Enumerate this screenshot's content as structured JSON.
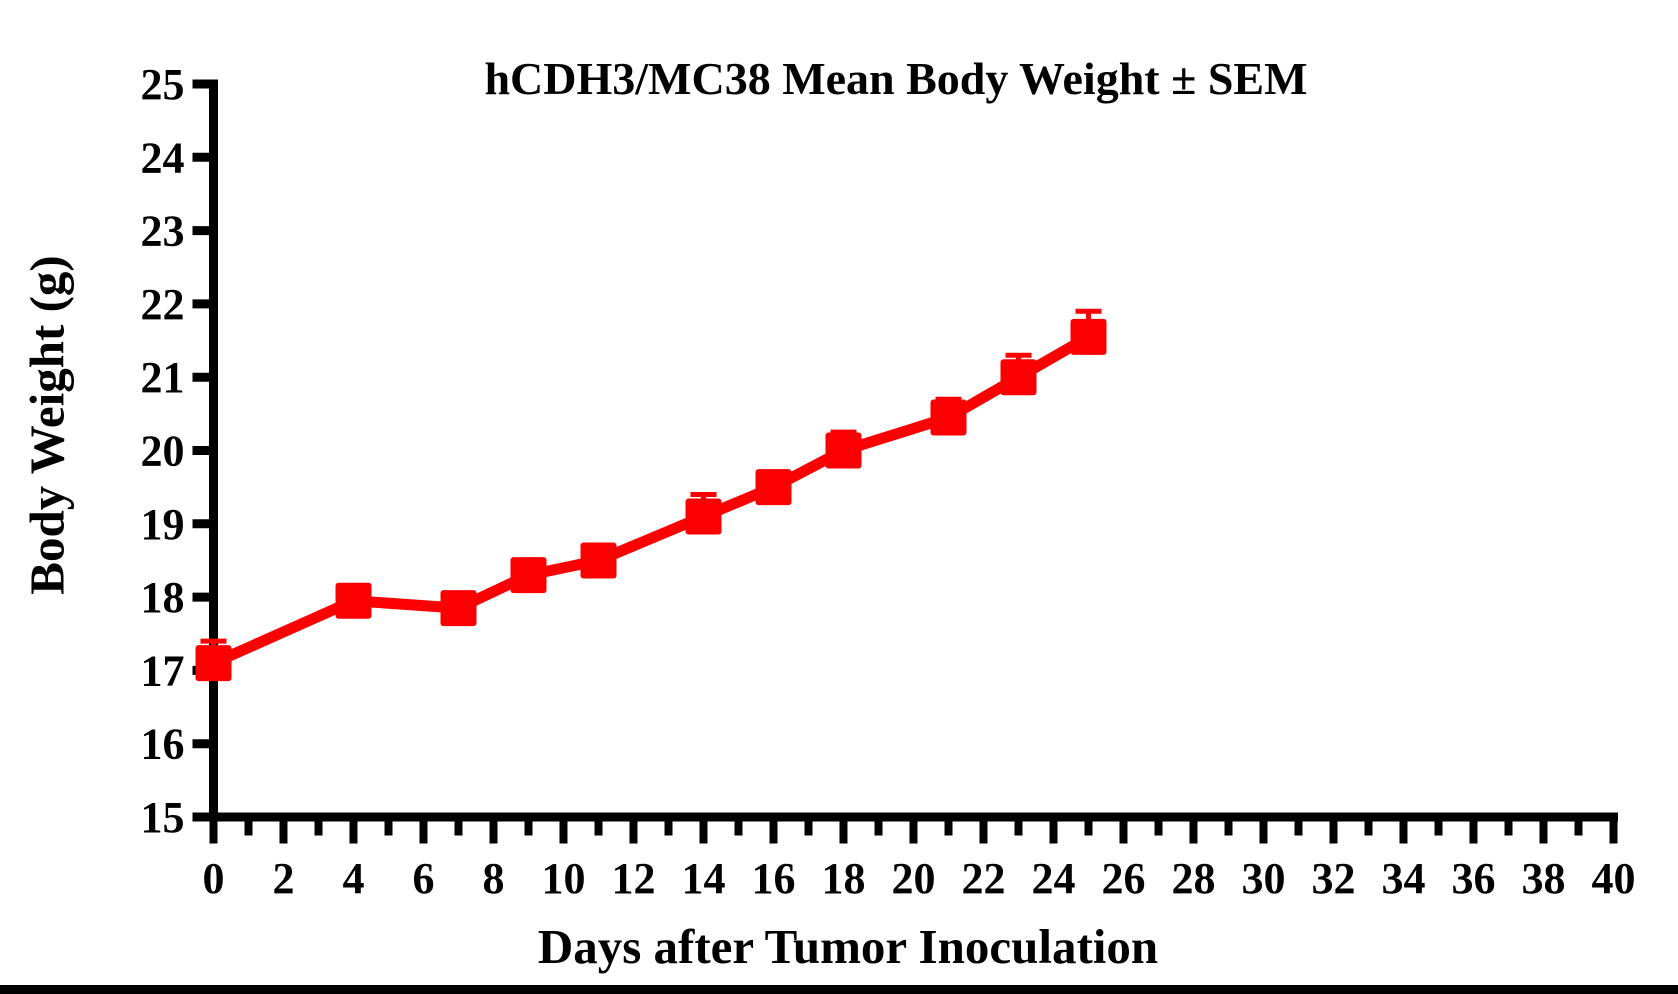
{
  "window": {
    "background": "#FFFFFF",
    "bottom_bar_color": "#000000"
  },
  "chart_data": {
    "type": "line",
    "title": "hCDH3/MC38 Mean Body Weight ± SEM",
    "xlabel": "Days after Tumor Inoculation",
    "ylabel": "Body Weight (g)",
    "x": [
      0,
      4,
      7,
      9,
      11,
      14,
      16,
      18,
      21,
      23,
      25
    ],
    "series": [
      {
        "name": "hCDH3/MC38 Mean Body Weight",
        "values": [
          17.1,
          17.95,
          17.85,
          18.3,
          18.5,
          19.1,
          19.5,
          20.0,
          20.45,
          21.0,
          21.55
        ],
        "sem_upper": [
          0.3,
          0.1,
          0.1,
          0.1,
          0.1,
          0.3,
          0.1,
          0.25,
          0.25,
          0.3,
          0.35
        ],
        "color": "#FB0000",
        "marker": "square"
      }
    ],
    "xlim": [
      0,
      40
    ],
    "ylim": [
      15,
      25
    ],
    "x_major_tick_step": 2,
    "x_minor_tick_step": 1,
    "y_tick_step": 1,
    "error_bars": "upper SEM",
    "grid": false,
    "legend": "none",
    "axis_color": "#000000",
    "tick_label_color": "#000000"
  }
}
